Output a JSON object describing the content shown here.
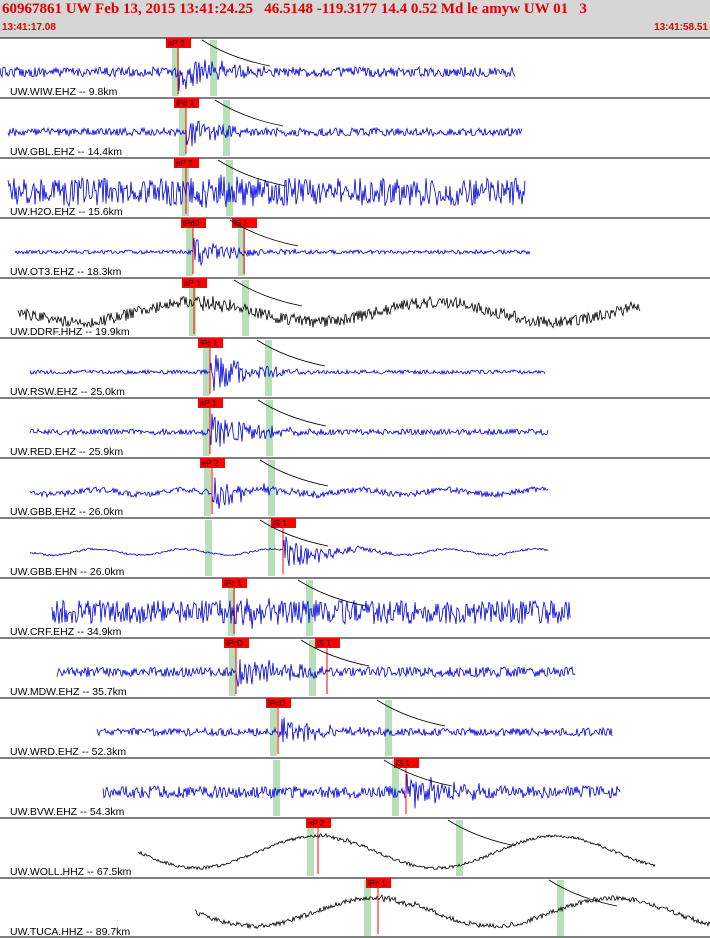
{
  "header": {
    "title": "60967861 UW Feb 13, 2015 13:41:24.25   46.5148 -119.3177 14.4 0.52 Md le amyw UW 01   3",
    "start_time": "13:41:17.08",
    "end_time": "13:41:58.51"
  },
  "colors": {
    "header_bg": "#d6d6d6",
    "header_text": "#e00000",
    "trace_ehz": "#0000e0",
    "trace_hhz": "#000000",
    "pick_box": "#ff0000",
    "pick_line": "#ff0000",
    "window_band": "#b8e0b8",
    "moveout_curve": "#000000"
  },
  "traces": [
    {
      "label": "UW.WIW.EHZ -- 9.8km",
      "color": "blue",
      "kind": "hf",
      "amp": 5,
      "burst": 22,
      "wave": 0,
      "p_pick": "eP 2",
      "s_pick": ""
    },
    {
      "label": "UW.GBL.EHZ -- 14.4km",
      "color": "blue",
      "kind": "hf",
      "amp": 4,
      "burst": 16,
      "wave": 0,
      "p_pick": "iPd 1",
      "s_pick": ""
    },
    {
      "label": "UW.H2O.EHZ -- 15.6km",
      "color": "blue",
      "kind": "hf",
      "amp": 14,
      "burst": 12,
      "wave": 0,
      "p_pick": "eP 2",
      "s_pick": ""
    },
    {
      "label": "UW.OT3.EHZ -- 18.3km",
      "color": "blue",
      "kind": "hf",
      "amp": 2,
      "burst": 16,
      "wave": 0,
      "p_pick": "iPd0",
      "s_pick": "iS 1"
    },
    {
      "label": "UW.DDRF.HHZ -- 19.9km",
      "color": "black",
      "kind": "lf",
      "amp": 6,
      "burst": 6,
      "wave": 10,
      "p_pick": "eP 1",
      "s_pick": ""
    },
    {
      "label": "UW.RSW.EHZ -- 25.0km",
      "color": "blue",
      "kind": "hf",
      "amp": 2,
      "burst": 22,
      "wave": 0,
      "p_pick": "iPc 1",
      "s_pick": ""
    },
    {
      "label": "UW.RED.EHZ -- 25.9km",
      "color": "blue",
      "kind": "hf",
      "amp": 3,
      "burst": 20,
      "wave": 0,
      "p_pick": "eP 1",
      "s_pick": ""
    },
    {
      "label": "UW.GBB.EHZ -- 26.0km",
      "color": "blue",
      "kind": "lfb",
      "amp": 3,
      "burst": 16,
      "wave": 4,
      "p_pick": "eP 2",
      "s_pick": ""
    },
    {
      "label": "UW.GBB.EHN -- 26.0km",
      "color": "blue",
      "kind": "lfb",
      "amp": 1,
      "burst": 18,
      "wave": 5,
      "p_pick": "",
      "s_pick": "iS 1"
    },
    {
      "label": "UW.CRF.EHZ -- 34.9km",
      "color": "blue",
      "kind": "hf",
      "amp": 12,
      "burst": 8,
      "wave": 0,
      "p_pick": "iPc 1",
      "s_pick": ""
    },
    {
      "label": "UW.MDW.EHZ -- 35.7km",
      "color": "blue",
      "kind": "hf",
      "amp": 5,
      "burst": 18,
      "wave": 0,
      "p_pick": "iPcD",
      "s_pick": "iS 1"
    },
    {
      "label": "UW.WRD.EHZ -- 52.3km",
      "color": "blue",
      "kind": "hf",
      "amp": 4,
      "burst": 14,
      "wave": 0,
      "p_pick": "iPcD",
      "s_pick": ""
    },
    {
      "label": "UW.BVW.EHZ -- 54.3km",
      "color": "blue",
      "kind": "hf",
      "amp": 6,
      "burst": 18,
      "wave": 0,
      "p_pick": "",
      "s_pick": "iS 1"
    },
    {
      "label": "UW.WOLL.HHZ -- 67.5km",
      "color": "black",
      "kind": "lf",
      "amp": 1.5,
      "burst": 3,
      "wave": 16,
      "p_pick": "eP 2",
      "s_pick": ""
    },
    {
      "label": "UW.TUCA.HHZ -- 89.7km",
      "color": "black",
      "kind": "lf",
      "amp": 2.5,
      "burst": 3,
      "wave": 14,
      "p_pick": "iPc 1",
      "s_pick": ""
    }
  ]
}
